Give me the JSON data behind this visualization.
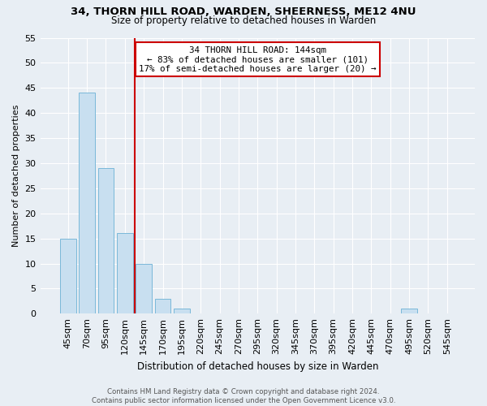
{
  "title1": "34, THORN HILL ROAD, WARDEN, SHEERNESS, ME12 4NU",
  "title2": "Size of property relative to detached houses in Warden",
  "xlabel": "Distribution of detached houses by size in Warden",
  "ylabel": "Number of detached properties",
  "bar_labels": [
    "45sqm",
    "70sqm",
    "95sqm",
    "120sqm",
    "145sqm",
    "170sqm",
    "195sqm",
    "220sqm",
    "245sqm",
    "270sqm",
    "295sqm",
    "320sqm",
    "345sqm",
    "370sqm",
    "395sqm",
    "420sqm",
    "445sqm",
    "470sqm",
    "495sqm",
    "520sqm",
    "545sqm"
  ],
  "bar_values": [
    15,
    44,
    29,
    16,
    10,
    3,
    1,
    0,
    0,
    0,
    0,
    0,
    0,
    0,
    0,
    0,
    0,
    0,
    1,
    0,
    0
  ],
  "bar_color": "#c8dff0",
  "bar_edge_color": "#7ab8d9",
  "ylim": [
    0,
    55
  ],
  "yticks": [
    0,
    5,
    10,
    15,
    20,
    25,
    30,
    35,
    40,
    45,
    50,
    55
  ],
  "vline_color": "#cc0000",
  "bg_color": "#e8eef4",
  "grid_color": "#ffffff",
  "annotation_line1": "34 THORN HILL ROAD: 144sqm",
  "annotation_line2": "← 83% of detached houses are smaller (101)",
  "annotation_line3": "17% of semi-detached houses are larger (20) →",
  "footer1": "Contains HM Land Registry data © Crown copyright and database right 2024.",
  "footer2": "Contains public sector information licensed under the Open Government Licence v3.0."
}
